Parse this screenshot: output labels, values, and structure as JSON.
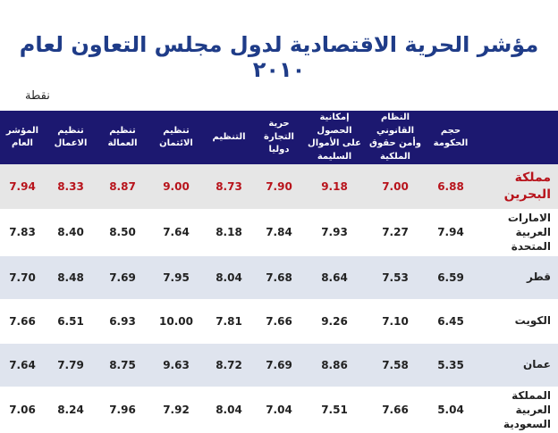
{
  "title": "مؤشر الحرية الاقتصادية لدول مجلس التعاون لعام ٢٠١٠",
  "unit": "نقطة",
  "columns": [
    "",
    "حجم الحكومة",
    "النظام القانوني وأمن حقوق الملكية",
    "إمكانية الحصول على الأموال السليمة",
    "حرية التجارة دوليا",
    "التنظيم",
    "تنظيم الائتمان",
    "تنظيم العمالة",
    "تنظيم الاعمال",
    "المؤشر العام"
  ],
  "rows": [
    {
      "country": "مملكة البحرين",
      "values": [
        "6.88",
        "7.00",
        "9.18",
        "7.90",
        "8.73",
        "9.00",
        "8.87",
        "8.33",
        "7.94"
      ]
    },
    {
      "country": "الامارات العربية المتحدة",
      "values": [
        "7.94",
        "7.27",
        "7.93",
        "7.84",
        "8.18",
        "7.64",
        "8.50",
        "8.40",
        "7.83"
      ]
    },
    {
      "country": "قطر",
      "values": [
        "6.59",
        "7.53",
        "8.64",
        "7.68",
        "8.04",
        "7.95",
        "7.69",
        "8.48",
        "7.70"
      ]
    },
    {
      "country": "الكويت",
      "values": [
        "6.45",
        "7.10",
        "9.26",
        "7.66",
        "7.81",
        "10.00",
        "6.93",
        "6.51",
        "7.66"
      ]
    },
    {
      "country": "عمان",
      "values": [
        "5.35",
        "7.58",
        "8.86",
        "7.69",
        "8.72",
        "9.63",
        "8.75",
        "7.79",
        "7.64"
      ]
    },
    {
      "country": "المملكة العربية السعودية",
      "values": [
        "5.04",
        "7.66",
        "7.51",
        "7.04",
        "8.04",
        "7.92",
        "7.96",
        "8.24",
        "7.06"
      ]
    }
  ],
  "colors": {
    "header_bg": "#1c1870",
    "title": "#1f3c88",
    "highlight": "#b8141c",
    "stripe": "#dfe4ee"
  }
}
